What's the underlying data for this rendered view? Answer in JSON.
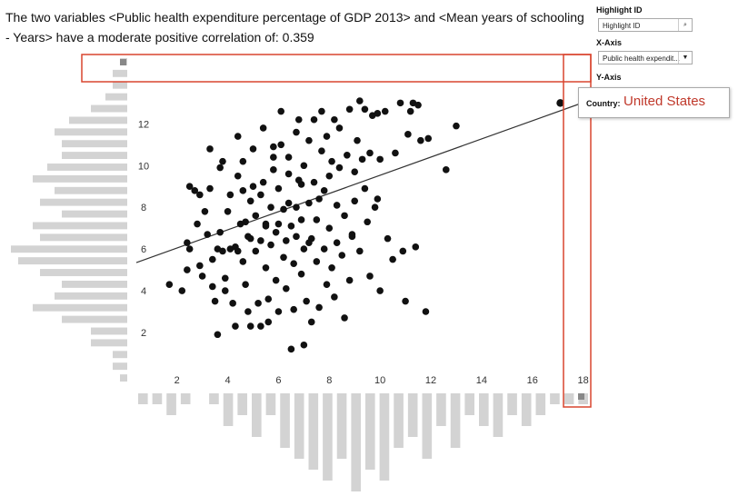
{
  "headline": "The two variables <Public health expenditure percentage of GDP 2013> and <Mean years of schooling - Years> have a moderate positive correlation of: 0.359",
  "controls": {
    "highlight_label": "Highlight ID",
    "highlight_placeholder": "Highlight ID",
    "search_icon": "search-icon",
    "xaxis_label": "X-Axis",
    "xaxis_value": "Public health expendit...",
    "yaxis_label": "Y-Axis",
    "dropdown_icon": "chevron-down-icon"
  },
  "tooltip": {
    "label": "Country:",
    "value": "United States"
  },
  "colors": {
    "points": "#111111",
    "bars": "#d3d3d3",
    "highlight": "#d9452f"
  },
  "chart_data": {
    "type": "scatter",
    "correlation": 0.359,
    "xlim": [
      0.4,
      18.3
    ],
    "ylim": [
      0.3,
      13.8
    ],
    "xticks": [
      2,
      4,
      6,
      8,
      10,
      12,
      14,
      16,
      18
    ],
    "yticks": [
      2,
      4,
      6,
      8,
      10,
      12
    ],
    "trendline": {
      "x": [
        0.4,
        18.3
      ],
      "y": [
        5.35,
        13.15
      ]
    },
    "highlight_point": {
      "x": 17.1,
      "y": 13.0,
      "label": "United States"
    },
    "points": [
      [
        1.7,
        4.3
      ],
      [
        2.2,
        4.0
      ],
      [
        2.4,
        5.0
      ],
      [
        2.5,
        6.0
      ],
      [
        2.4,
        6.3
      ],
      [
        2.5,
        9.0
      ],
      [
        2.7,
        8.8
      ],
      [
        2.8,
        7.2
      ],
      [
        2.9,
        5.2
      ],
      [
        3.0,
        4.7
      ],
      [
        3.1,
        7.8
      ],
      [
        3.2,
        6.7
      ],
      [
        3.3,
        8.9
      ],
      [
        3.3,
        10.8
      ],
      [
        3.4,
        5.5
      ],
      [
        3.4,
        4.2
      ],
      [
        3.5,
        3.5
      ],
      [
        3.6,
        1.9
      ],
      [
        3.6,
        6.0
      ],
      [
        3.7,
        9.9
      ],
      [
        3.7,
        6.8
      ],
      [
        3.8,
        5.9
      ],
      [
        3.9,
        4.0
      ],
      [
        3.9,
        4.6
      ],
      [
        4.0,
        7.8
      ],
      [
        4.1,
        8.6
      ],
      [
        4.1,
        6.0
      ],
      [
        4.2,
        3.4
      ],
      [
        4.3,
        2.3
      ],
      [
        4.3,
        6.1
      ],
      [
        4.4,
        5.9
      ],
      [
        4.4,
        9.5
      ],
      [
        4.4,
        11.4
      ],
      [
        4.5,
        7.2
      ],
      [
        4.6,
        8.8
      ],
      [
        4.6,
        10.2
      ],
      [
        4.7,
        7.3
      ],
      [
        4.7,
        4.3
      ],
      [
        4.8,
        3.0
      ],
      [
        4.9,
        2.3
      ],
      [
        4.9,
        6.5
      ],
      [
        4.9,
        8.3
      ],
      [
        5.0,
        9.0
      ],
      [
        5.0,
        10.8
      ],
      [
        5.1,
        7.6
      ],
      [
        5.1,
        5.9
      ],
      [
        5.2,
        3.4
      ],
      [
        5.3,
        2.3
      ],
      [
        5.3,
        6.4
      ],
      [
        5.3,
        8.6
      ],
      [
        5.4,
        9.2
      ],
      [
        5.4,
        11.8
      ],
      [
        5.5,
        7.2
      ],
      [
        5.5,
        5.1
      ],
      [
        5.6,
        3.6
      ],
      [
        5.6,
        2.5
      ],
      [
        5.7,
        6.2
      ],
      [
        5.7,
        8.0
      ],
      [
        5.8,
        9.8
      ],
      [
        5.8,
        10.4
      ],
      [
        5.9,
        6.8
      ],
      [
        5.9,
        4.5
      ],
      [
        6.0,
        3.0
      ],
      [
        6.0,
        7.2
      ],
      [
        6.0,
        8.9
      ],
      [
        6.1,
        11.0
      ],
      [
        6.1,
        12.6
      ],
      [
        6.2,
        7.9
      ],
      [
        6.2,
        5.6
      ],
      [
        6.3,
        4.1
      ],
      [
        6.3,
        6.4
      ],
      [
        6.4,
        8.2
      ],
      [
        6.4,
        9.6
      ],
      [
        6.4,
        10.4
      ],
      [
        6.5,
        1.2
      ],
      [
        6.5,
        7.1
      ],
      [
        6.6,
        3.1
      ],
      [
        6.6,
        5.3
      ],
      [
        6.7,
        8.0
      ],
      [
        6.7,
        11.6
      ],
      [
        6.8,
        12.2
      ],
      [
        6.8,
        9.3
      ],
      [
        6.9,
        4.8
      ],
      [
        6.9,
        7.4
      ],
      [
        7.0,
        1.4
      ],
      [
        7.0,
        6.0
      ],
      [
        7.0,
        10.0
      ],
      [
        7.1,
        3.5
      ],
      [
        7.2,
        8.2
      ],
      [
        7.2,
        11.2
      ],
      [
        7.3,
        2.5
      ],
      [
        7.3,
        6.5
      ],
      [
        7.4,
        9.2
      ],
      [
        7.4,
        12.2
      ],
      [
        7.5,
        7.4
      ],
      [
        7.5,
        5.4
      ],
      [
        7.6,
        3.2
      ],
      [
        7.6,
        8.4
      ],
      [
        7.7,
        10.7
      ],
      [
        7.7,
        12.6
      ],
      [
        7.8,
        8.8
      ],
      [
        7.8,
        6.0
      ],
      [
        7.9,
        4.3
      ],
      [
        7.9,
        11.4
      ],
      [
        8.0,
        9.5
      ],
      [
        8.0,
        7.0
      ],
      [
        8.1,
        10.2
      ],
      [
        8.1,
        5.1
      ],
      [
        8.2,
        3.7
      ],
      [
        8.2,
        12.2
      ],
      [
        8.3,
        8.1
      ],
      [
        8.3,
        6.3
      ],
      [
        8.4,
        9.9
      ],
      [
        8.4,
        11.8
      ],
      [
        8.5,
        5.7
      ],
      [
        8.6,
        2.7
      ],
      [
        8.6,
        7.6
      ],
      [
        8.7,
        10.5
      ],
      [
        8.8,
        12.7
      ],
      [
        8.8,
        4.5
      ],
      [
        8.9,
        6.7
      ],
      [
        9.0,
        9.7
      ],
      [
        9.0,
        8.3
      ],
      [
        9.1,
        11.2
      ],
      [
        9.2,
        13.1
      ],
      [
        9.2,
        5.9
      ],
      [
        9.3,
        10.3
      ],
      [
        9.4,
        12.7
      ],
      [
        9.5,
        7.3
      ],
      [
        9.6,
        4.7
      ],
      [
        9.6,
        10.6
      ],
      [
        9.7,
        12.4
      ],
      [
        9.8,
        8.0
      ],
      [
        9.9,
        12.5
      ],
      [
        9.9,
        8.4
      ],
      [
        10.0,
        4.0
      ],
      [
        10.0,
        10.3
      ],
      [
        10.2,
        12.6
      ],
      [
        10.3,
        6.5
      ],
      [
        10.5,
        5.5
      ],
      [
        10.6,
        10.6
      ],
      [
        10.8,
        13.0
      ],
      [
        10.9,
        5.9
      ],
      [
        11.0,
        3.5
      ],
      [
        11.1,
        11.5
      ],
      [
        11.2,
        12.6
      ],
      [
        11.3,
        13.0
      ],
      [
        11.4,
        6.1
      ],
      [
        11.5,
        12.9
      ],
      [
        11.6,
        11.2
      ],
      [
        11.8,
        3.0
      ],
      [
        11.9,
        11.3
      ],
      [
        12.6,
        9.8
      ],
      [
        13.0,
        11.9
      ],
      [
        6.7,
        6.6
      ],
      [
        3.8,
        10.2
      ],
      [
        4.8,
        6.6
      ],
      [
        5.8,
        10.9
      ],
      [
        7.2,
        6.3
      ],
      [
        8.9,
        6.6
      ],
      [
        2.9,
        8.6
      ],
      [
        9.4,
        8.9
      ],
      [
        6.9,
        9.1
      ],
      [
        5.5,
        7.1
      ],
      [
        4.6,
        5.4
      ]
    ],
    "x_marginal_counts": [
      1,
      1,
      2,
      1,
      0,
      1,
      3,
      2,
      4,
      2,
      5,
      6,
      7,
      8,
      6,
      9,
      7,
      8,
      5,
      4,
      6,
      3,
      5,
      2,
      3,
      4,
      2,
      3,
      2,
      1,
      1,
      1
    ],
    "y_marginal_counts": [
      1,
      2,
      2,
      3,
      5,
      8,
      10,
      9,
      9,
      11,
      13,
      10,
      12,
      9,
      13,
      12,
      16,
      15,
      12,
      9,
      10,
      13,
      9,
      5,
      5,
      2,
      2,
      1
    ]
  }
}
